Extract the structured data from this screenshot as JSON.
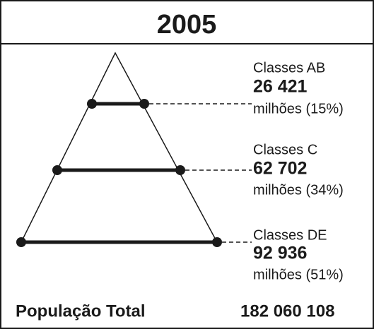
{
  "title": "2005",
  "classes": [
    {
      "name": "Classes AB",
      "value": "26 421",
      "unit": "milhões (15%)"
    },
    {
      "name": "Classes C",
      "value": "62 702",
      "unit": "milhões (34%)"
    },
    {
      "name": "Classes DE",
      "value": "92 936",
      "unit": "milhões (51%)"
    }
  ],
  "total": {
    "label": "População Total",
    "value": "182 060 108"
  }
}
